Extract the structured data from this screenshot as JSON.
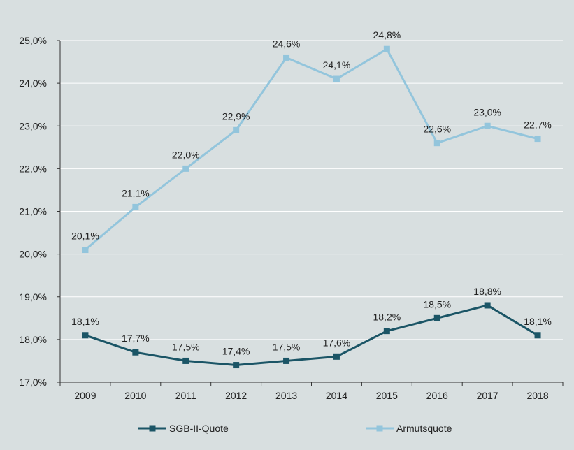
{
  "chart_data": {
    "type": "line",
    "categories": [
      "2009",
      "2010",
      "2011",
      "2012",
      "2013",
      "2014",
      "2015",
      "2016",
      "2017",
      "2018"
    ],
    "series": [
      {
        "name": "SGB-II-Quote",
        "values": [
          18.1,
          17.7,
          17.5,
          17.4,
          17.5,
          17.6,
          18.2,
          18.5,
          18.8,
          18.1
        ],
        "labels": [
          "18,1%",
          "17,7%",
          "17,5%",
          "17,4%",
          "17,5%",
          "17,6%",
          "18,2%",
          "18,5%",
          "18,8%",
          "18,1%"
        ],
        "color": "#1b5566"
      },
      {
        "name": "Armutsquote",
        "values": [
          20.1,
          21.1,
          22.0,
          22.9,
          24.6,
          24.1,
          24.8,
          22.6,
          23.0,
          22.7
        ],
        "labels": [
          "20,1%",
          "21,1%",
          "22,0%",
          "22,9%",
          "24,6%",
          "24,1%",
          "24,8%",
          "22,6%",
          "23,0%",
          "22,7%"
        ],
        "color": "#93c5dc"
      }
    ],
    "ylim": [
      17.0,
      25.0
    ],
    "y_ticks": [
      17.0,
      18.0,
      19.0,
      20.0,
      21.0,
      22.0,
      23.0,
      24.0,
      25.0
    ],
    "y_tick_labels": [
      "17,0%",
      "18,0%",
      "19,0%",
      "20,0%",
      "21,0%",
      "22,0%",
      "23,0%",
      "24,0%",
      "25,0%"
    ],
    "grid": true,
    "legend_position": "bottom",
    "background_color": "#d8dfe0",
    "grid_color": "#ffffff"
  }
}
